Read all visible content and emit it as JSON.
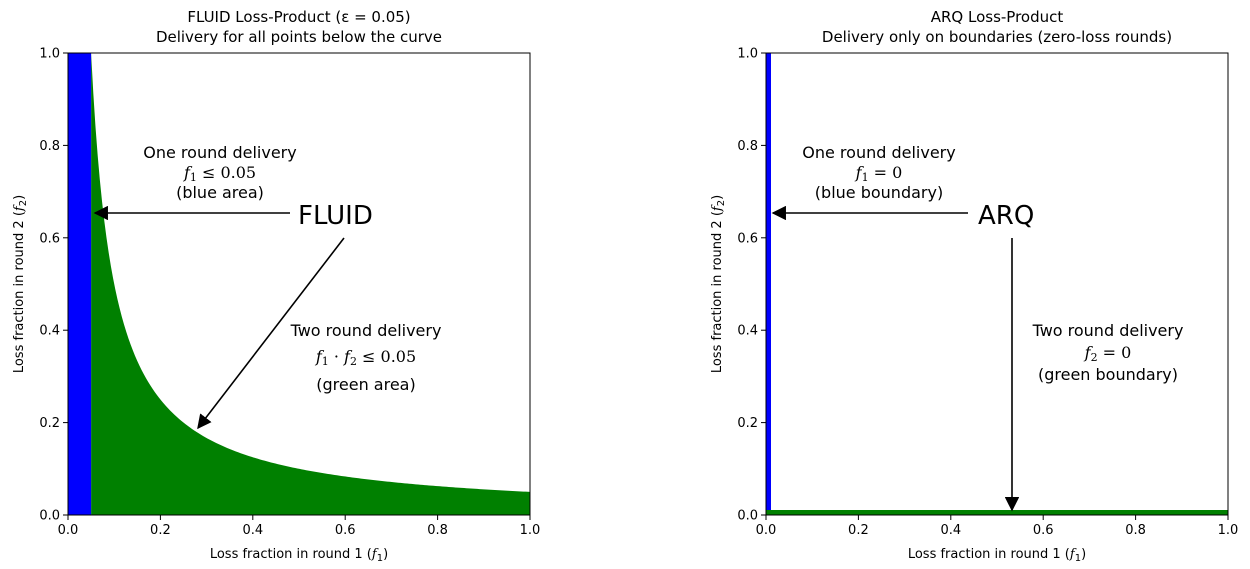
{
  "chart_data": [
    {
      "type": "area",
      "title": "FLUID Loss-Product (ε = 0.05)",
      "subtitle": "Delivery for all points below the curve",
      "xlabel_text": "Loss fraction in round 1 (",
      "xlabel_var": "f",
      "xlabel_sub": "1",
      "xlabel_close": ")",
      "ylabel_text": "Loss fraction in round 2 (",
      "ylabel_var": "f",
      "ylabel_sub": "2",
      "ylabel_close": ")",
      "xlim": [
        0,
        1
      ],
      "ylim": [
        0,
        1
      ],
      "xticks": [
        "0.0",
        "0.2",
        "0.4",
        "0.6",
        "0.8",
        "1.0"
      ],
      "yticks": [
        "0.0",
        "0.2",
        "0.4",
        "0.6",
        "0.8",
        "1.0"
      ],
      "grid": false,
      "epsilon": 0.05,
      "colors": {
        "blue": "#0000ff",
        "green": "#008000"
      },
      "series": [
        {
          "region": "one-round",
          "x_range": [
            0,
            0.05
          ],
          "y_range": [
            0,
            1
          ]
        },
        {
          "region": "two-round",
          "curve": "f2 = 0.05 / f1",
          "x_range": [
            0.05,
            1
          ]
        }
      ],
      "annotations": {
        "one_round": {
          "line1": "One round delivery",
          "math_var": "f",
          "math_sub": "1",
          "math_rest": " ≤ 0.05",
          "line3": "(blue area)"
        },
        "big_label": "FLUID",
        "two_round": {
          "line1": "Two round delivery",
          "math_a": "f",
          "math_a_sub": "1",
          "math_mid": " · ",
          "math_b": "f",
          "math_b_sub": "2",
          "math_rest": " ≤ 0.05",
          "line3": "(green area)"
        }
      }
    },
    {
      "type": "line",
      "title": "ARQ Loss-Product",
      "subtitle": "Delivery only on boundaries (zero-loss rounds)",
      "xlabel_text": "Loss fraction in round 1 (",
      "xlabel_var": "f",
      "xlabel_sub": "1",
      "xlabel_close": ")",
      "ylabel_text": "Loss fraction in round 2 (",
      "ylabel_var": "f",
      "ylabel_sub": "2",
      "ylabel_close": ")",
      "xlim": [
        0,
        1
      ],
      "ylim": [
        0,
        1
      ],
      "xticks": [
        "0.0",
        "0.2",
        "0.4",
        "0.6",
        "0.8",
        "1.0"
      ],
      "yticks": [
        "0.0",
        "0.2",
        "0.4",
        "0.6",
        "0.8",
        "1.0"
      ],
      "grid": false,
      "colors": {
        "blue": "#0000ff",
        "green": "#008000"
      },
      "series": [
        {
          "boundary": "f1 = 0",
          "x": [
            0,
            0
          ],
          "y": [
            0,
            1
          ]
        },
        {
          "boundary": "f2 = 0",
          "x": [
            0,
            1
          ],
          "y": [
            0,
            0
          ]
        }
      ],
      "annotations": {
        "one_round": {
          "line1": "One round delivery",
          "math_var": "f",
          "math_sub": "1",
          "math_rest": " = 0",
          "line3": "(blue boundary)"
        },
        "big_label": "ARQ",
        "two_round": {
          "line1": "Two round delivery",
          "math_var": "f",
          "math_sub": "2",
          "math_rest": " = 0",
          "line3": "(green boundary)"
        }
      }
    }
  ]
}
